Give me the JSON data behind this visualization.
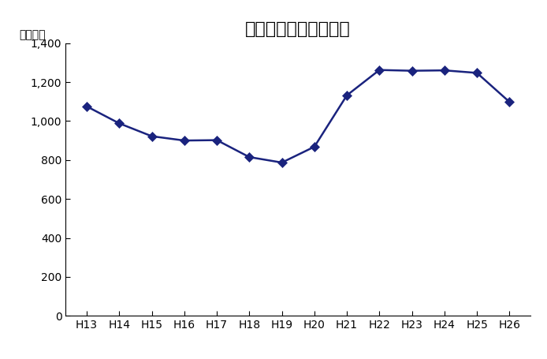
{
  "title": "基金年度末残高の推移",
  "ylabel": "（億円）",
  "categories": [
    "H13",
    "H14",
    "H15",
    "H16",
    "H17",
    "H18",
    "H19",
    "H20",
    "H21",
    "H22",
    "H23",
    "H24",
    "H25",
    "H26"
  ],
  "values": [
    1075,
    988,
    922,
    900,
    902,
    815,
    787,
    868,
    1132,
    1262,
    1258,
    1260,
    1247,
    1098
  ],
  "line_color": "#1a237e",
  "marker": "D",
  "marker_size": 6,
  "ylim": [
    0,
    1400
  ],
  "yticks": [
    0,
    200,
    400,
    600,
    800,
    1000,
    1200,
    1400
  ],
  "ytick_labels": [
    "0",
    "200",
    "400",
    "600",
    "800",
    "1,000",
    "1,200",
    "1,400"
  ],
  "background_color": "#ffffff",
  "title_fontsize": 16,
  "ylabel_fontsize": 10,
  "tick_fontsize": 10
}
